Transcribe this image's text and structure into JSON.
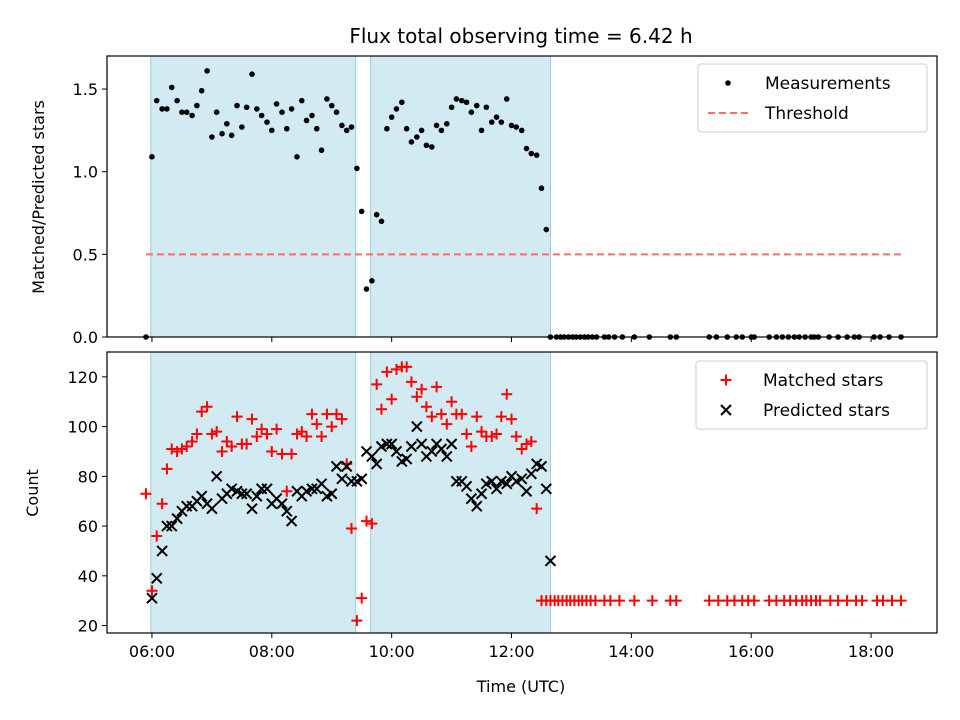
{
  "chart_data": [
    {
      "type": "scatter",
      "title": "Flux total observing time = 6.42 h",
      "ylabel": "Matched/Predicted stars",
      "xlabel": "",
      "x_unit": "hours UTC",
      "xlim": [
        5.25,
        19.1
      ],
      "ylim": [
        0,
        1.7
      ],
      "x_tick_labels": [
        "06:00",
        "08:00",
        "10:00",
        "12:00",
        "14:00",
        "16:00",
        "18:00"
      ],
      "x_ticks": [
        6,
        8,
        10,
        12,
        14,
        16,
        18
      ],
      "y_ticks": [
        0.0,
        0.5,
        1.0,
        1.5
      ],
      "y_tick_labels": [
        "0.0",
        "0.5",
        "1.0",
        "1.5"
      ],
      "shaded_intervals": [
        [
          5.98,
          9.4
        ],
        [
          9.65,
          12.65
        ]
      ],
      "shade_color": "#add8e6",
      "grid": false,
      "legend_position": "top-right",
      "series": [
        {
          "name": "Measurements",
          "style": "dot",
          "color": "#000000",
          "x": [
            5.9,
            6.0,
            6.08,
            6.17,
            6.25,
            6.33,
            6.42,
            6.5,
            6.58,
            6.67,
            6.75,
            6.83,
            6.92,
            7.0,
            7.08,
            7.17,
            7.25,
            7.33,
            7.42,
            7.5,
            7.58,
            7.67,
            7.75,
            7.83,
            7.92,
            8.0,
            8.08,
            8.17,
            8.25,
            8.33,
            8.42,
            8.5,
            8.58,
            8.67,
            8.75,
            8.83,
            8.92,
            9.0,
            9.08,
            9.17,
            9.25,
            9.33,
            9.42,
            9.5,
            9.58,
            9.67,
            9.75,
            9.83,
            9.92,
            10.0,
            10.08,
            10.17,
            10.25,
            10.33,
            10.42,
            10.5,
            10.58,
            10.67,
            10.75,
            10.83,
            10.92,
            11.0,
            11.08,
            11.17,
            11.25,
            11.33,
            11.42,
            11.5,
            11.58,
            11.67,
            11.75,
            11.83,
            11.92,
            12.0,
            12.08,
            12.17,
            12.25,
            12.33,
            12.42,
            12.5,
            12.58,
            12.65
          ],
          "y": [
            0.0,
            1.09,
            1.43,
            1.38,
            1.38,
            1.51,
            1.43,
            1.36,
            1.36,
            1.34,
            1.4,
            1.49,
            1.61,
            1.21,
            1.36,
            1.23,
            1.29,
            1.22,
            1.4,
            1.27,
            1.39,
            1.59,
            1.38,
            1.34,
            1.3,
            1.25,
            1.41,
            1.36,
            1.26,
            1.38,
            1.09,
            1.43,
            1.31,
            1.34,
            1.26,
            1.13,
            1.44,
            1.4,
            1.36,
            1.28,
            1.25,
            1.27,
            1.02,
            0.76,
            0.29,
            0.34,
            0.74,
            0.7,
            1.26,
            1.33,
            1.38,
            1.42,
            1.26,
            1.18,
            1.21,
            1.25,
            1.16,
            1.15,
            1.28,
            1.25,
            1.29,
            1.39,
            1.44,
            1.43,
            1.42,
            1.36,
            1.4,
            1.25,
            1.39,
            1.3,
            1.33,
            1.3,
            1.44,
            1.28,
            1.27,
            1.25,
            1.14,
            1.11,
            1.1,
            0.9,
            0.65,
            0.0
          ]
        },
        {
          "name": "Measurements",
          "style": "dot",
          "color": "#000000",
          "x": [
            12.75,
            12.82,
            12.88,
            12.95,
            13.02,
            13.08,
            13.15,
            13.22,
            13.28,
            13.35,
            13.42,
            13.55,
            13.62,
            13.72,
            13.85,
            14.05,
            14.3,
            14.65,
            14.75,
            15.3,
            15.42,
            15.6,
            15.75,
            15.85,
            16.0,
            16.05,
            16.3,
            16.42,
            16.52,
            16.62,
            16.72,
            16.8,
            16.9,
            17.0,
            17.05,
            17.12,
            17.3,
            17.45,
            17.6,
            17.72,
            17.8,
            18.05,
            18.15,
            18.3,
            18.5
          ],
          "y": [
            0,
            0,
            0,
            0,
            0,
            0,
            0,
            0,
            0,
            0,
            0,
            0,
            0,
            0,
            0,
            0,
            0,
            0,
            0,
            0,
            0,
            0,
            0,
            0,
            0,
            0,
            0,
            0,
            0,
            0,
            0,
            0,
            0,
            0,
            0,
            0,
            0,
            0,
            0,
            0,
            0,
            0,
            0,
            0,
            0
          ]
        },
        {
          "name": "Threshold",
          "style": "dashed-line",
          "color": "#ff6b6b",
          "x": [
            5.9,
            18.5
          ],
          "y": [
            0.5,
            0.5
          ]
        }
      ],
      "legend": [
        {
          "label": "Measurements",
          "marker": "dot",
          "color": "#000000"
        },
        {
          "label": "Threshold",
          "marker": "dashed-line",
          "color": "#ff6b6b"
        }
      ]
    },
    {
      "type": "scatter",
      "title": "",
      "ylabel": "Count",
      "xlabel": "Time (UTC)",
      "x_unit": "hours UTC",
      "xlim": [
        5.25,
        19.1
      ],
      "ylim": [
        17,
        130
      ],
      "x_tick_labels": [
        "06:00",
        "08:00",
        "10:00",
        "12:00",
        "14:00",
        "16:00",
        "18:00"
      ],
      "x_ticks": [
        6,
        8,
        10,
        12,
        14,
        16,
        18
      ],
      "y_ticks": [
        20,
        40,
        60,
        80,
        100,
        120
      ],
      "y_tick_labels": [
        "20",
        "40",
        "60",
        "80",
        "100",
        "120"
      ],
      "shaded_intervals": [
        [
          5.98,
          9.4
        ],
        [
          9.65,
          12.65
        ]
      ],
      "shade_color": "#add8e6",
      "grid": false,
      "legend_position": "top-right",
      "series": [
        {
          "name": "Matched stars",
          "style": "plus",
          "color": "#ff0000",
          "x": [
            5.9,
            6.0,
            6.08,
            6.17,
            6.25,
            6.33,
            6.42,
            6.5,
            6.58,
            6.67,
            6.75,
            6.83,
            6.92,
            7.0,
            7.08,
            7.17,
            7.25,
            7.33,
            7.42,
            7.5,
            7.58,
            7.67,
            7.75,
            7.83,
            7.92,
            8.0,
            8.08,
            8.17,
            8.25,
            8.33,
            8.42,
            8.5,
            8.58,
            8.67,
            8.75,
            8.83,
            8.92,
            9.0,
            9.08,
            9.17,
            9.25,
            9.33,
            9.42,
            9.5,
            9.58,
            9.67,
            9.75,
            9.83,
            9.92,
            10.0,
            10.08,
            10.17,
            10.25,
            10.33,
            10.42,
            10.5,
            10.58,
            10.67,
            10.75,
            10.83,
            10.92,
            11.0,
            11.08,
            11.17,
            11.25,
            11.33,
            11.42,
            11.5,
            11.58,
            11.67,
            11.75,
            11.83,
            11.92,
            12.0,
            12.08,
            12.17,
            12.25,
            12.33,
            12.42,
            12.5,
            12.58
          ],
          "y": [
            73,
            34,
            56,
            69,
            83,
            91,
            90,
            91,
            92,
            94,
            97,
            106,
            108,
            97,
            98,
            90,
            94,
            92,
            104,
            93,
            93,
            103,
            96,
            99,
            97,
            90,
            99,
            89,
            74,
            89,
            97,
            98,
            96,
            105,
            101,
            96,
            105,
            100,
            105,
            103,
            85,
            59,
            22,
            31,
            62,
            61,
            117,
            107,
            122,
            111,
            123,
            124,
            124,
            118,
            112,
            115,
            108,
            104,
            116,
            105,
            101,
            110,
            105,
            105,
            97,
            92,
            104,
            98,
            96,
            96,
            97,
            104,
            113,
            103,
            96,
            91,
            93,
            94,
            67,
            30,
            30
          ],
          "x_extra": [
            12.65,
            12.72,
            12.78,
            12.85,
            12.92,
            12.98,
            13.05,
            13.12,
            13.18,
            13.25,
            13.32,
            13.4,
            13.55,
            13.65,
            13.8,
            14.05,
            14.35,
            14.65,
            14.75,
            15.3,
            15.45,
            15.6,
            15.72,
            15.85,
            15.95,
            16.05,
            16.3,
            16.42,
            16.55,
            16.65,
            16.75,
            16.85,
            16.92,
            17.0,
            17.08,
            17.15,
            17.32,
            17.45,
            17.6,
            17.75,
            17.85,
            18.1,
            18.2,
            18.35,
            18.5
          ],
          "y_extra": [
            30,
            30,
            30,
            30,
            30,
            30,
            30,
            30,
            30,
            30,
            30,
            30,
            30,
            30,
            30,
            30,
            30,
            30,
            30,
            30,
            30,
            30,
            30,
            30,
            30,
            30,
            30,
            30,
            30,
            30,
            30,
            30,
            30,
            30,
            30,
            30,
            30,
            30,
            30,
            30,
            30,
            30,
            30,
            30,
            30
          ]
        },
        {
          "name": "Predicted stars",
          "style": "x",
          "color": "#000000",
          "x": [
            6.0,
            6.08,
            6.17,
            6.25,
            6.33,
            6.42,
            6.5,
            6.58,
            6.67,
            6.75,
            6.83,
            6.92,
            7.0,
            7.08,
            7.17,
            7.25,
            7.33,
            7.42,
            7.5,
            7.58,
            7.67,
            7.75,
            7.83,
            7.92,
            8.0,
            8.08,
            8.17,
            8.25,
            8.33,
            8.42,
            8.5,
            8.58,
            8.67,
            8.75,
            8.83,
            8.92,
            9.0,
            9.08,
            9.17,
            9.25,
            9.33,
            9.42,
            9.5,
            9.58,
            9.67,
            9.75,
            9.83,
            9.92,
            10.0,
            10.08,
            10.17,
            10.25,
            10.33,
            10.42,
            10.5,
            10.58,
            10.67,
            10.75,
            10.83,
            10.92,
            11.0,
            11.08,
            11.17,
            11.25,
            11.33,
            11.42,
            11.5,
            11.58,
            11.67,
            11.75,
            11.83,
            11.92,
            12.0,
            12.08,
            12.17,
            12.25,
            12.33,
            12.42,
            12.5,
            12.58,
            12.65
          ],
          "y": [
            31,
            39,
            50,
            60,
            60,
            63,
            66,
            68,
            68,
            70,
            72,
            69,
            67,
            80,
            71,
            73,
            75,
            74,
            73,
            73,
            67,
            72,
            75,
            75,
            69,
            71,
            69,
            66,
            62,
            74,
            72,
            74,
            75,
            75,
            77,
            72,
            73,
            84,
            79,
            84,
            78,
            78,
            79,
            90,
            88,
            85,
            92,
            93,
            93,
            90,
            86,
            87,
            92,
            100,
            93,
            88,
            90,
            93,
            91,
            88,
            93,
            78,
            78,
            76,
            71,
            68,
            73,
            77,
            78,
            75,
            78,
            77,
            80,
            78,
            79,
            74,
            81,
            85,
            84,
            75,
            46
          ]
        }
      ],
      "legend": [
        {
          "label": "Matched stars",
          "marker": "plus",
          "color": "#ff0000"
        },
        {
          "label": "Predicted stars",
          "marker": "x",
          "color": "#000000"
        }
      ]
    }
  ]
}
